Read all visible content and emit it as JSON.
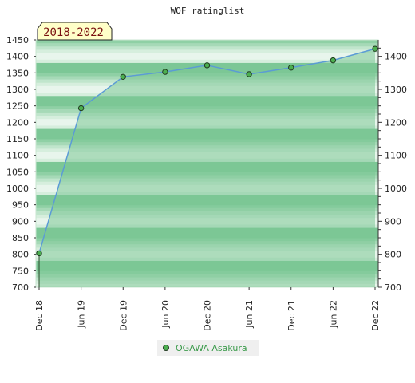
{
  "chart_data": {
    "type": "line",
    "title": "WOF ratinglist",
    "period_label": "2018-2022",
    "x": [
      "Dec 18",
      "Jun 19",
      "Dec 19",
      "Jun 20",
      "Dec 20",
      "Jun 21",
      "Dec 21",
      "Jun 22",
      "Dec 22"
    ],
    "series": [
      {
        "name": "OGAWA Asakura",
        "values": [
          803,
          1243,
          1338,
          1353,
          1373,
          1346,
          1366,
          1388,
          1423
        ]
      }
    ],
    "ylim_left": [
      700,
      1450
    ],
    "yticks_left": [
      700,
      750,
      800,
      850,
      900,
      950,
      1000,
      1050,
      1100,
      1150,
      1200,
      1250,
      1300,
      1350,
      1400,
      1450
    ],
    "yticks_right": [
      700,
      800,
      900,
      1000,
      1100,
      1200,
      1300,
      1400
    ],
    "legend_position": "bottom-center",
    "colors": {
      "line": "#5b9bd5",
      "marker": "#4caf50",
      "band_dark": "#7cc796",
      "band_light": "#e8f5ec",
      "legend_text": "#3a9a4a",
      "period_bg": "#ffffc8"
    }
  }
}
